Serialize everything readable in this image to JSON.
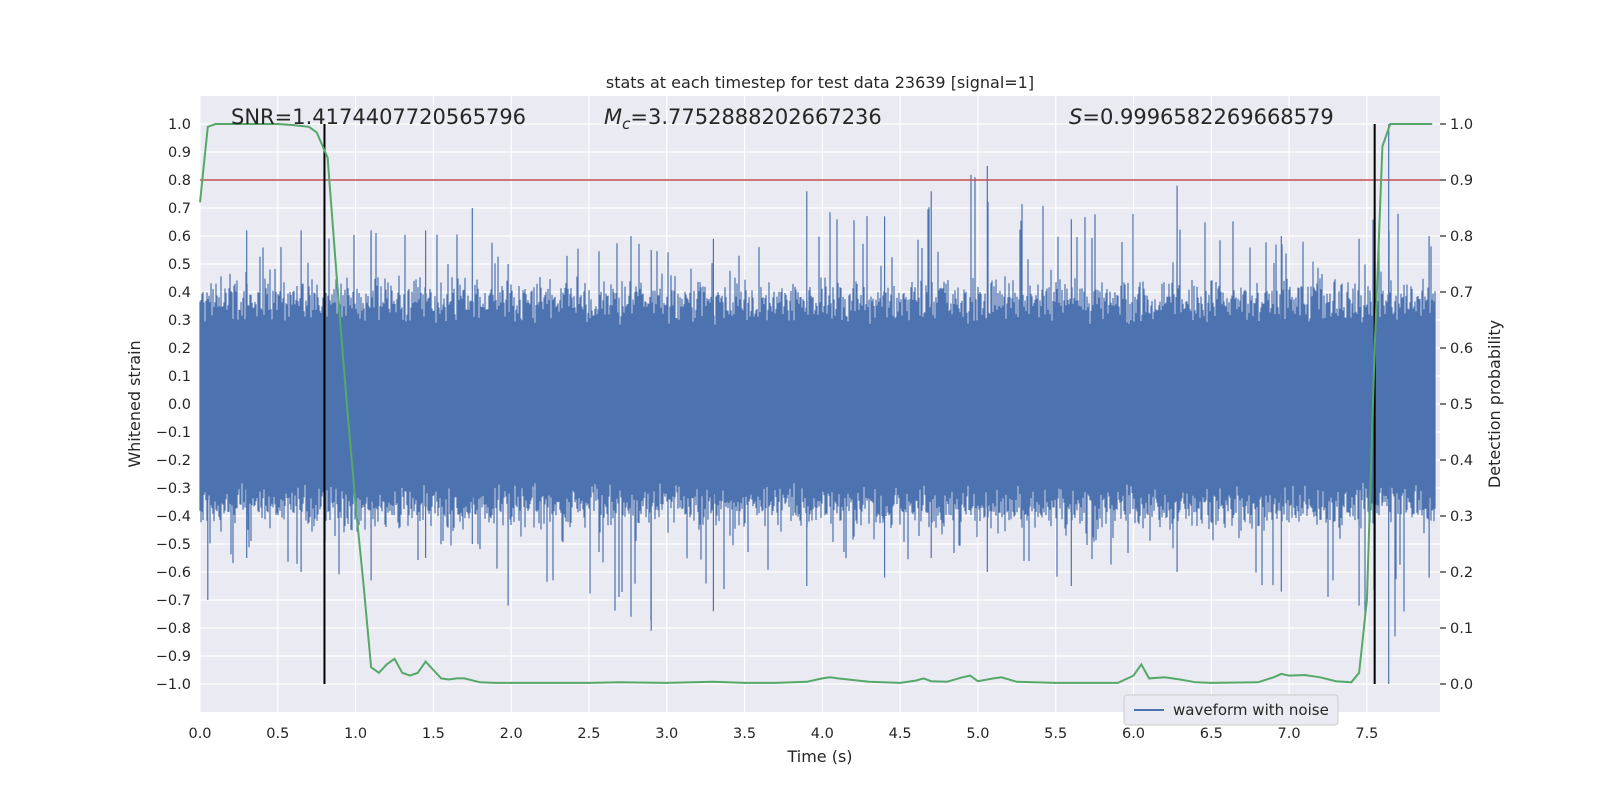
{
  "colors": {
    "plot_background": "#EAEAF2",
    "grid": "#FFFFFF",
    "waveform": "#4C72B0",
    "probability": "#55A868",
    "threshold": "#C44E52",
    "marker": "#000000",
    "text": "#262626"
  },
  "chart_data": {
    "type": "line",
    "title": "stats at each timestep for test data 23639 [signal=1]",
    "xlabel": "Time (s)",
    "ylabel_left": "Whitened strain",
    "ylabel_right": "Detection probability",
    "xlim": [
      0.0,
      7.97
    ],
    "ylim_left": [
      -1.1,
      1.1
    ],
    "ylim_right": [
      -0.05,
      1.05
    ],
    "x_ticks": [
      0.0,
      0.5,
      1.0,
      1.5,
      2.0,
      2.5,
      3.0,
      3.5,
      4.0,
      4.5,
      5.0,
      5.5,
      6.0,
      6.5,
      7.0,
      7.5
    ],
    "x_tick_labels": [
      "0.0",
      "0.5",
      "1.0",
      "1.5",
      "2.0",
      "2.5",
      "3.0",
      "3.5",
      "4.0",
      "4.5",
      "5.0",
      "5.5",
      "6.0",
      "6.5",
      "7.0",
      "7.5"
    ],
    "y_left_ticks": [
      1.0,
      0.9,
      0.8,
      0.7,
      0.6,
      0.5,
      0.4,
      0.3,
      0.2,
      0.1,
      0.0,
      -0.1,
      -0.2,
      -0.3,
      -0.4,
      -0.5,
      -0.6,
      -0.7,
      -0.8,
      -0.9,
      -1.0
    ],
    "y_left_tick_labels": [
      "1.0",
      "0.9",
      "0.8",
      "0.7",
      "0.6",
      "0.5",
      "0.4",
      "0.3",
      "0.2",
      "0.1",
      "0.0",
      "−0.1",
      "−0.2",
      "−0.3",
      "−0.4",
      "−0.5",
      "−0.6",
      "−0.7",
      "−0.8",
      "−0.9",
      "−1.0"
    ],
    "y_right_ticks": [
      1.0,
      0.9,
      0.8,
      0.7,
      0.6,
      0.5,
      0.4,
      0.3,
      0.2,
      0.1,
      0.0
    ],
    "y_right_tick_labels": [
      "1.0",
      "0.9",
      "0.8",
      "0.7",
      "0.6",
      "0.5",
      "0.4",
      "0.3",
      "0.2",
      "0.1",
      "0.0"
    ],
    "grid": true,
    "legend": {
      "position": "lower-right",
      "entries": [
        "waveform with noise"
      ]
    },
    "annotations": {
      "snr": "SNR=1.4174407720565796",
      "mc_prefix": "M",
      "mc_sub": "c",
      "mc_value": "=3.7752888202667236",
      "s_prefix": "S",
      "s_value": "=0.9996582269668579"
    },
    "threshold_right": 0.9,
    "vertical_markers": [
      0.8,
      7.55
    ],
    "vertical_marker_range_left": [
      -1.0,
      1.0
    ],
    "waveform": {
      "name": "waveform with noise",
      "note_envelope_segments": [
        {
          "t": 0.05,
          "max": 0.3,
          "min": -0.7
        },
        {
          "t": 0.3,
          "max": 0.62,
          "min": -0.55
        },
        {
          "t": 0.65,
          "max": 0.62,
          "min": -0.6
        },
        {
          "t": 1.1,
          "max": 0.62,
          "min": -0.63
        },
        {
          "t": 1.45,
          "max": 0.62,
          "min": -0.55
        },
        {
          "t": 1.75,
          "max": 0.7,
          "min": -0.5
        },
        {
          "t": 1.98,
          "max": 0.5,
          "min": -0.72
        },
        {
          "t": 2.77,
          "max": 0.6,
          "min": -0.76
        },
        {
          "t": 2.9,
          "max": 0.55,
          "min": -0.81
        },
        {
          "t": 3.3,
          "max": 0.59,
          "min": -0.74
        },
        {
          "t": 3.9,
          "max": 0.76,
          "min": -0.65
        },
        {
          "t": 4.4,
          "max": 0.67,
          "min": -0.62
        },
        {
          "t": 4.7,
          "max": 0.76,
          "min": -0.55
        },
        {
          "t": 5.06,
          "max": 0.85,
          "min": -0.6
        },
        {
          "t": 5.6,
          "max": 0.66,
          "min": -0.65
        },
        {
          "t": 6.28,
          "max": 0.78,
          "min": -0.6
        },
        {
          "t": 6.95,
          "max": 0.6,
          "min": -0.67
        },
        {
          "t": 7.45,
          "max": 0.59,
          "min": -0.72
        },
        {
          "t": 7.64,
          "max": 1.0,
          "min": -1.0
        },
        {
          "t": 7.9,
          "max": 0.6,
          "min": -0.62
        }
      ]
    },
    "probability": {
      "x": [
        0.0,
        0.05,
        0.1,
        0.2,
        0.3,
        0.4,
        0.5,
        0.6,
        0.7,
        0.75,
        0.82,
        0.9,
        0.95,
        1.0,
        1.05,
        1.1,
        1.15,
        1.2,
        1.25,
        1.3,
        1.35,
        1.4,
        1.45,
        1.5,
        1.55,
        1.6,
        1.65,
        1.7,
        1.8,
        1.9,
        2.0,
        2.2,
        2.5,
        2.7,
        3.0,
        3.3,
        3.5,
        3.7,
        3.9,
        4.0,
        4.05,
        4.1,
        4.3,
        4.5,
        4.6,
        4.65,
        4.7,
        4.8,
        4.9,
        4.95,
        5.0,
        5.1,
        5.15,
        5.25,
        5.5,
        5.9,
        6.0,
        6.05,
        6.1,
        6.2,
        6.3,
        6.4,
        6.5,
        6.8,
        6.9,
        6.95,
        7.0,
        7.1,
        7.2,
        7.3,
        7.4,
        7.45,
        7.5,
        7.55,
        7.6,
        7.65,
        7.7,
        7.8,
        7.92
      ],
      "y": [
        0.86,
        0.995,
        1.0,
        1.0,
        1.0,
        1.0,
        1.0,
        0.998,
        0.995,
        0.985,
        0.94,
        0.65,
        0.48,
        0.32,
        0.18,
        0.03,
        0.02,
        0.035,
        0.045,
        0.02,
        0.015,
        0.02,
        0.04,
        0.025,
        0.01,
        0.008,
        0.01,
        0.01,
        0.003,
        0.002,
        0.002,
        0.002,
        0.002,
        0.003,
        0.002,
        0.004,
        0.002,
        0.002,
        0.004,
        0.01,
        0.012,
        0.01,
        0.004,
        0.002,
        0.006,
        0.01,
        0.005,
        0.004,
        0.012,
        0.015,
        0.005,
        0.01,
        0.012,
        0.004,
        0.002,
        0.002,
        0.015,
        0.035,
        0.01,
        0.012,
        0.008,
        0.003,
        0.002,
        0.003,
        0.012,
        0.018,
        0.015,
        0.016,
        0.012,
        0.005,
        0.003,
        0.02,
        0.15,
        0.6,
        0.96,
        1.0,
        1.0,
        1.0,
        1.0
      ]
    }
  }
}
